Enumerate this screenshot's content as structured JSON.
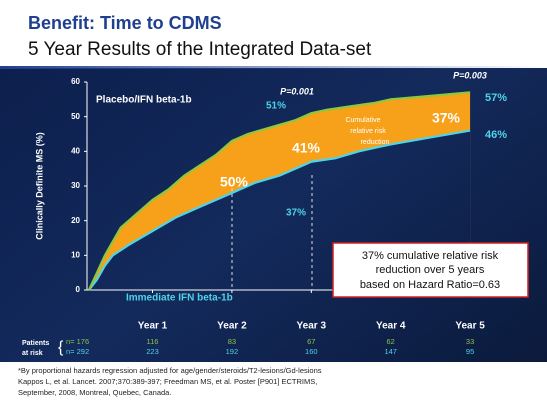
{
  "title": "Benefit: Time to CDMS",
  "subtitle": "5 Year Results of the Integrated Data-set",
  "chart_data": {
    "type": "line",
    "y_label": "Clinically Definite MS (%)",
    "ylim": [
      0,
      60
    ],
    "yticks": [
      0,
      10,
      20,
      30,
      40,
      50,
      60
    ],
    "xlim": [
      0.2,
      5.15
    ],
    "xticks": [
      {
        "value": 1,
        "label": "Year 1"
      },
      {
        "value": 2,
        "label": "Year 2"
      },
      {
        "value": 3,
        "label": "Year 3"
      },
      {
        "value": 4,
        "label": "Year 4"
      },
      {
        "value": 5,
        "label": "Year 5"
      }
    ],
    "series": [
      {
        "name": "Placebo/IFN beta-1b",
        "color": "#8dc63f",
        "x": [
          0.2,
          0.3,
          0.4,
          0.5,
          0.6,
          0.75,
          0.9,
          1.0,
          1.2,
          1.4,
          1.6,
          1.8,
          2.0,
          2.2,
          2.5,
          2.8,
          3.0,
          3.2,
          3.5,
          3.8,
          4.0,
          4.5,
          5.0
        ],
        "values": [
          0,
          5,
          10,
          14,
          18,
          21,
          24,
          26,
          29,
          33,
          36,
          39,
          43,
          45,
          47,
          49,
          51,
          52,
          53,
          54,
          55,
          56,
          57
        ]
      },
      {
        "name": "Immediate IFN beta-1b",
        "color": "#4fd3e8",
        "x": [
          0.2,
          0.3,
          0.4,
          0.5,
          0.7,
          1.0,
          1.3,
          1.6,
          1.8,
          2.0,
          2.3,
          2.6,
          2.9,
          3.0,
          3.3,
          3.6,
          4.0,
          4.5,
          5.0
        ],
        "values": [
          0,
          3,
          7,
          10,
          13,
          17,
          21,
          24,
          26,
          28,
          31,
          33,
          36,
          37,
          38,
          40,
          42,
          44,
          46
        ]
      }
    ],
    "fill_color": "#f7a11a",
    "annotations": {
      "p1": "P=0.001",
      "p2": "P=0.003",
      "pct51": "51%",
      "pct57": "57%",
      "pct46": "46%",
      "pct37_small": "37%",
      "pct50": "50%",
      "pct41": "41%",
      "pct37_big": "37%",
      "crr": [
        "Cumulative",
        "relative risk",
        "reduction"
      ],
      "box": [
        "37% cumulative relative risk",
        "reduction over 5 years",
        "based on Hazard Ratio=0.63"
      ]
    },
    "at_risk": {
      "label": [
        "Patients",
        "at risk"
      ],
      "rows": [
        {
          "n": "n= 176",
          "values": [
            116,
            83,
            67,
            62,
            33
          ]
        },
        {
          "n": "n= 292",
          "values": [
            223,
            192,
            160,
            147,
            95
          ]
        }
      ]
    }
  },
  "footnotes": [
    "*By proportional hazards regression adjusted for age/gender/steroids/T2-lesions/Gd-lesions",
    "Kappos L, et al. Lancet. 2007;370:389-397; Freedman MS, et al. Poster [P901] ECTRIMS,",
    "September, 2008, Montreal, Quebec, Canada."
  ]
}
